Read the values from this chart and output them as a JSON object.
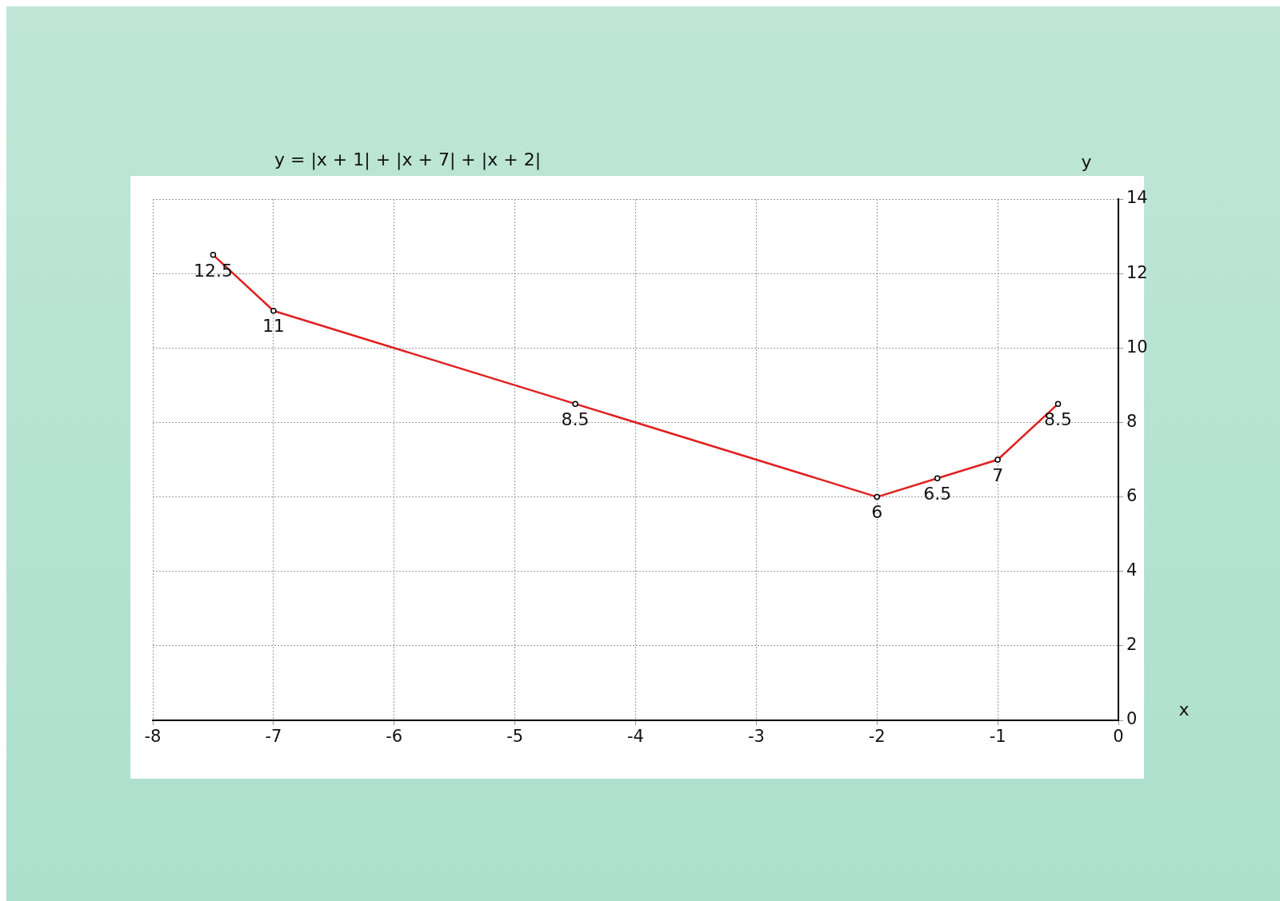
{
  "chart_data": {
    "type": "line",
    "title": "y = |x + 1| + |x + 7| + |x + 2|",
    "xlabel": "x",
    "ylabel": "y",
    "x": [
      -7.5,
      -7,
      -4.5,
      -2,
      -1.5,
      -1,
      -0.5
    ],
    "series": [
      {
        "color": "#e02020",
        "values": [
          12.5,
          11,
          8.5,
          6,
          6.5,
          7,
          8.5
        ]
      }
    ],
    "xlim": [
      -8,
      0
    ],
    "ylim": [
      0,
      14
    ],
    "xticks": [
      -8,
      -7,
      -6,
      -5,
      -4,
      -3,
      -2,
      -1,
      0
    ],
    "yticks": [
      0,
      2,
      4,
      6,
      8,
      10,
      12,
      14
    ],
    "grid": true,
    "marker": "circle",
    "line_style": "solid",
    "data_labels": true,
    "legend": false
  }
}
